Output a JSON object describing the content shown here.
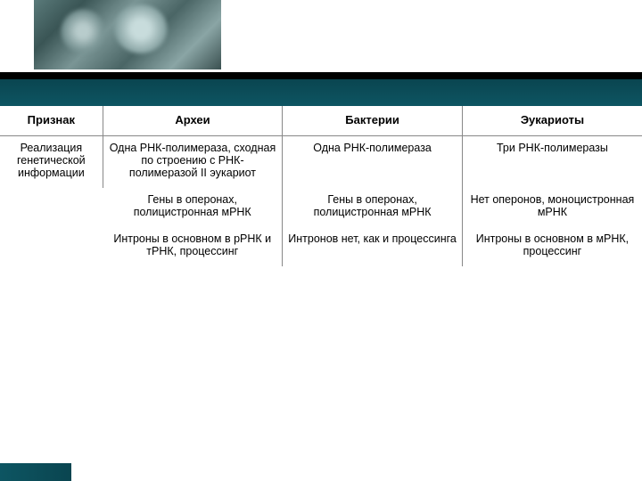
{
  "headers": {
    "col1": "Признак",
    "col2": "Археи",
    "col3": "Бактерии",
    "col4": "Эукариоты"
  },
  "rowLabel": "Реализация генетической информации",
  "rows": [
    {
      "archaea": "Одна РНК-полимераза, сходная по строению с РНК-полимеразой II эукариот",
      "bacteria": "Одна РНК-полимераза",
      "eukaryota": "Три РНК-полимеразы"
    },
    {
      "archaea": "Гены в оперонах, полицистронная мРНК",
      "bacteria": "Гены в оперонах, полицистронная мРНК",
      "eukaryota": "Нет оперонов, моноцистронная мРНК"
    },
    {
      "archaea": "Интроны в основном в рРНК и тРНК, процессинг",
      "bacteria": "Интронов нет, как и процессинга",
      "eukaryota": "Интроны в основном в мРНК, процессинг"
    }
  ],
  "colors": {
    "teal": "#0d5562",
    "black": "#000000",
    "border": "#888888"
  }
}
